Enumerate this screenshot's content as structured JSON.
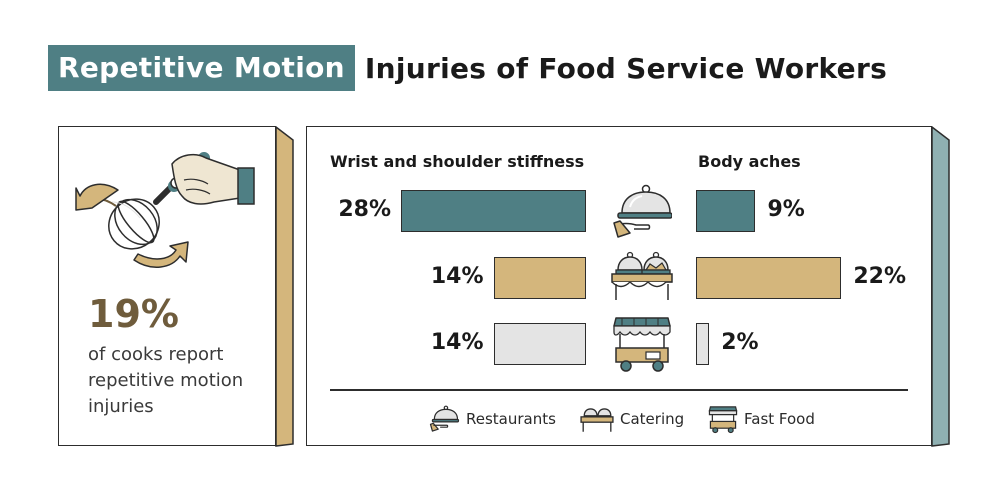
{
  "title": {
    "highlight": "Repetitive Motion",
    "rest": "Injuries of Food Service Workers"
  },
  "stat": {
    "value": "19%",
    "text": "of cooks report repetitive motion injuries"
  },
  "colors": {
    "restaurants": "#4f7f84",
    "catering": "#d4b67c",
    "fast_food": "#e4e4e4",
    "accent_dark": "#6f5c3c",
    "outline": "#2d2d2d"
  },
  "icons": {
    "stat": "whisk-hand-icon",
    "restaurants": "cloche-icon",
    "catering": "buffet-icon",
    "fast_food": "food-cart-icon"
  },
  "chart_data": {
    "type": "bar",
    "orientation": "horizontal-butterfly",
    "categories": [
      "Restaurants",
      "Catering",
      "Fast Food"
    ],
    "series": [
      {
        "name": "Wrist and shoulder stiffness",
        "values": [
          28,
          14,
          14
        ],
        "labels": [
          "28%",
          "14%",
          "14%"
        ]
      },
      {
        "name": "Body aches",
        "values": [
          9,
          22,
          2
        ],
        "labels": [
          "9%",
          "22%",
          "2%"
        ]
      }
    ],
    "unit": "%",
    "legend": "bottom",
    "grid": false
  }
}
